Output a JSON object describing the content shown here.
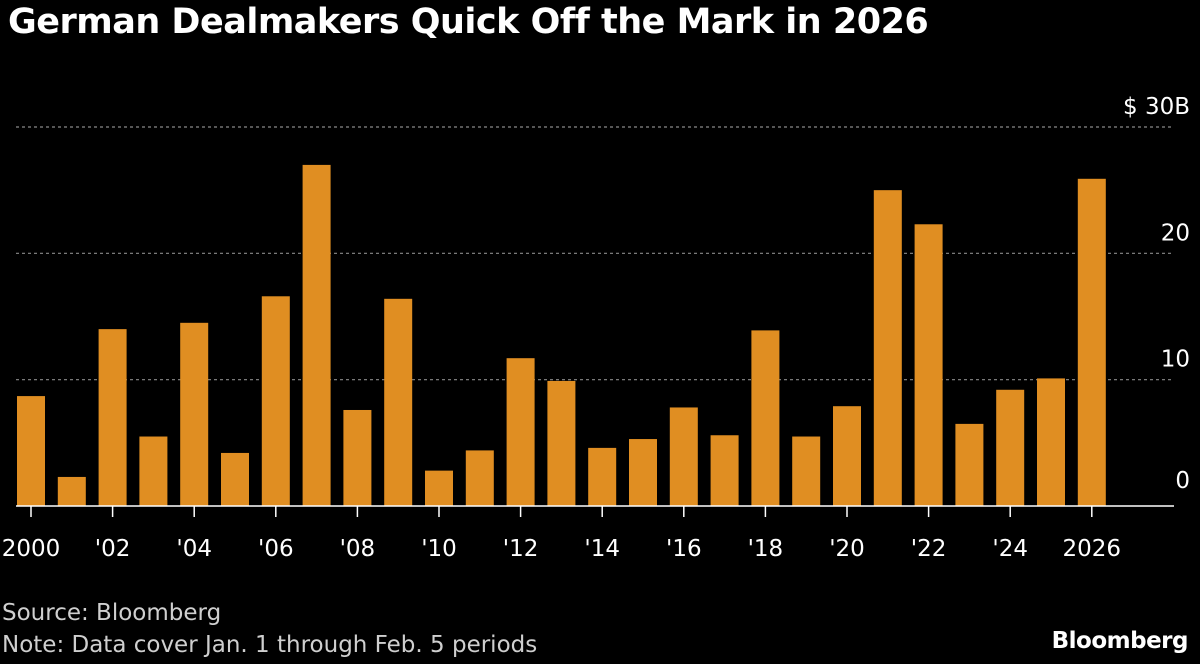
{
  "header": {
    "title": "German Dealmakers Quick Off the Mark in 2026"
  },
  "footer": {
    "source": "Source: Bloomberg",
    "note": "Note: Data cover Jan. 1 through Feb. 5 periods",
    "brand": "Bloomberg"
  },
  "colors": {
    "bar": "#E08E22",
    "background": "#000000",
    "grid": "#8a8a8a",
    "axis": "#ffffff"
  },
  "chart_data": {
    "type": "bar",
    "title": "German Dealmakers Quick Off the Mark in 2026",
    "xlabel": "",
    "ylabel": "",
    "ylim": [
      0,
      30
    ],
    "grid": true,
    "categories": [
      "2000",
      "2001",
      "2002",
      "2003",
      "2004",
      "2005",
      "2006",
      "2007",
      "2008",
      "2009",
      "2010",
      "2011",
      "2012",
      "2013",
      "2014",
      "2015",
      "2016",
      "2017",
      "2018",
      "2019",
      "2020",
      "2021",
      "2022",
      "2023",
      "2024",
      "2025",
      "2026"
    ],
    "values": [
      8.7,
      2.3,
      14.0,
      5.5,
      14.5,
      4.2,
      16.6,
      27.0,
      7.6,
      16.4,
      2.8,
      4.4,
      11.7,
      9.9,
      4.6,
      5.3,
      7.8,
      5.6,
      13.9,
      5.5,
      7.9,
      25.0,
      22.3,
      6.5,
      9.2,
      10.1,
      25.9
    ],
    "x_tick_labels": [
      "2000",
      "'02",
      "'04",
      "'06",
      "'08",
      "'10",
      "'12",
      "'14",
      "'16",
      "'18",
      "'20",
      "'22",
      "'24",
      "2026"
    ],
    "y_tick_labels": [
      "$ 30B",
      "20",
      "10",
      "0"
    ],
    "y_tick_values": [
      30,
      20,
      10,
      0
    ]
  }
}
